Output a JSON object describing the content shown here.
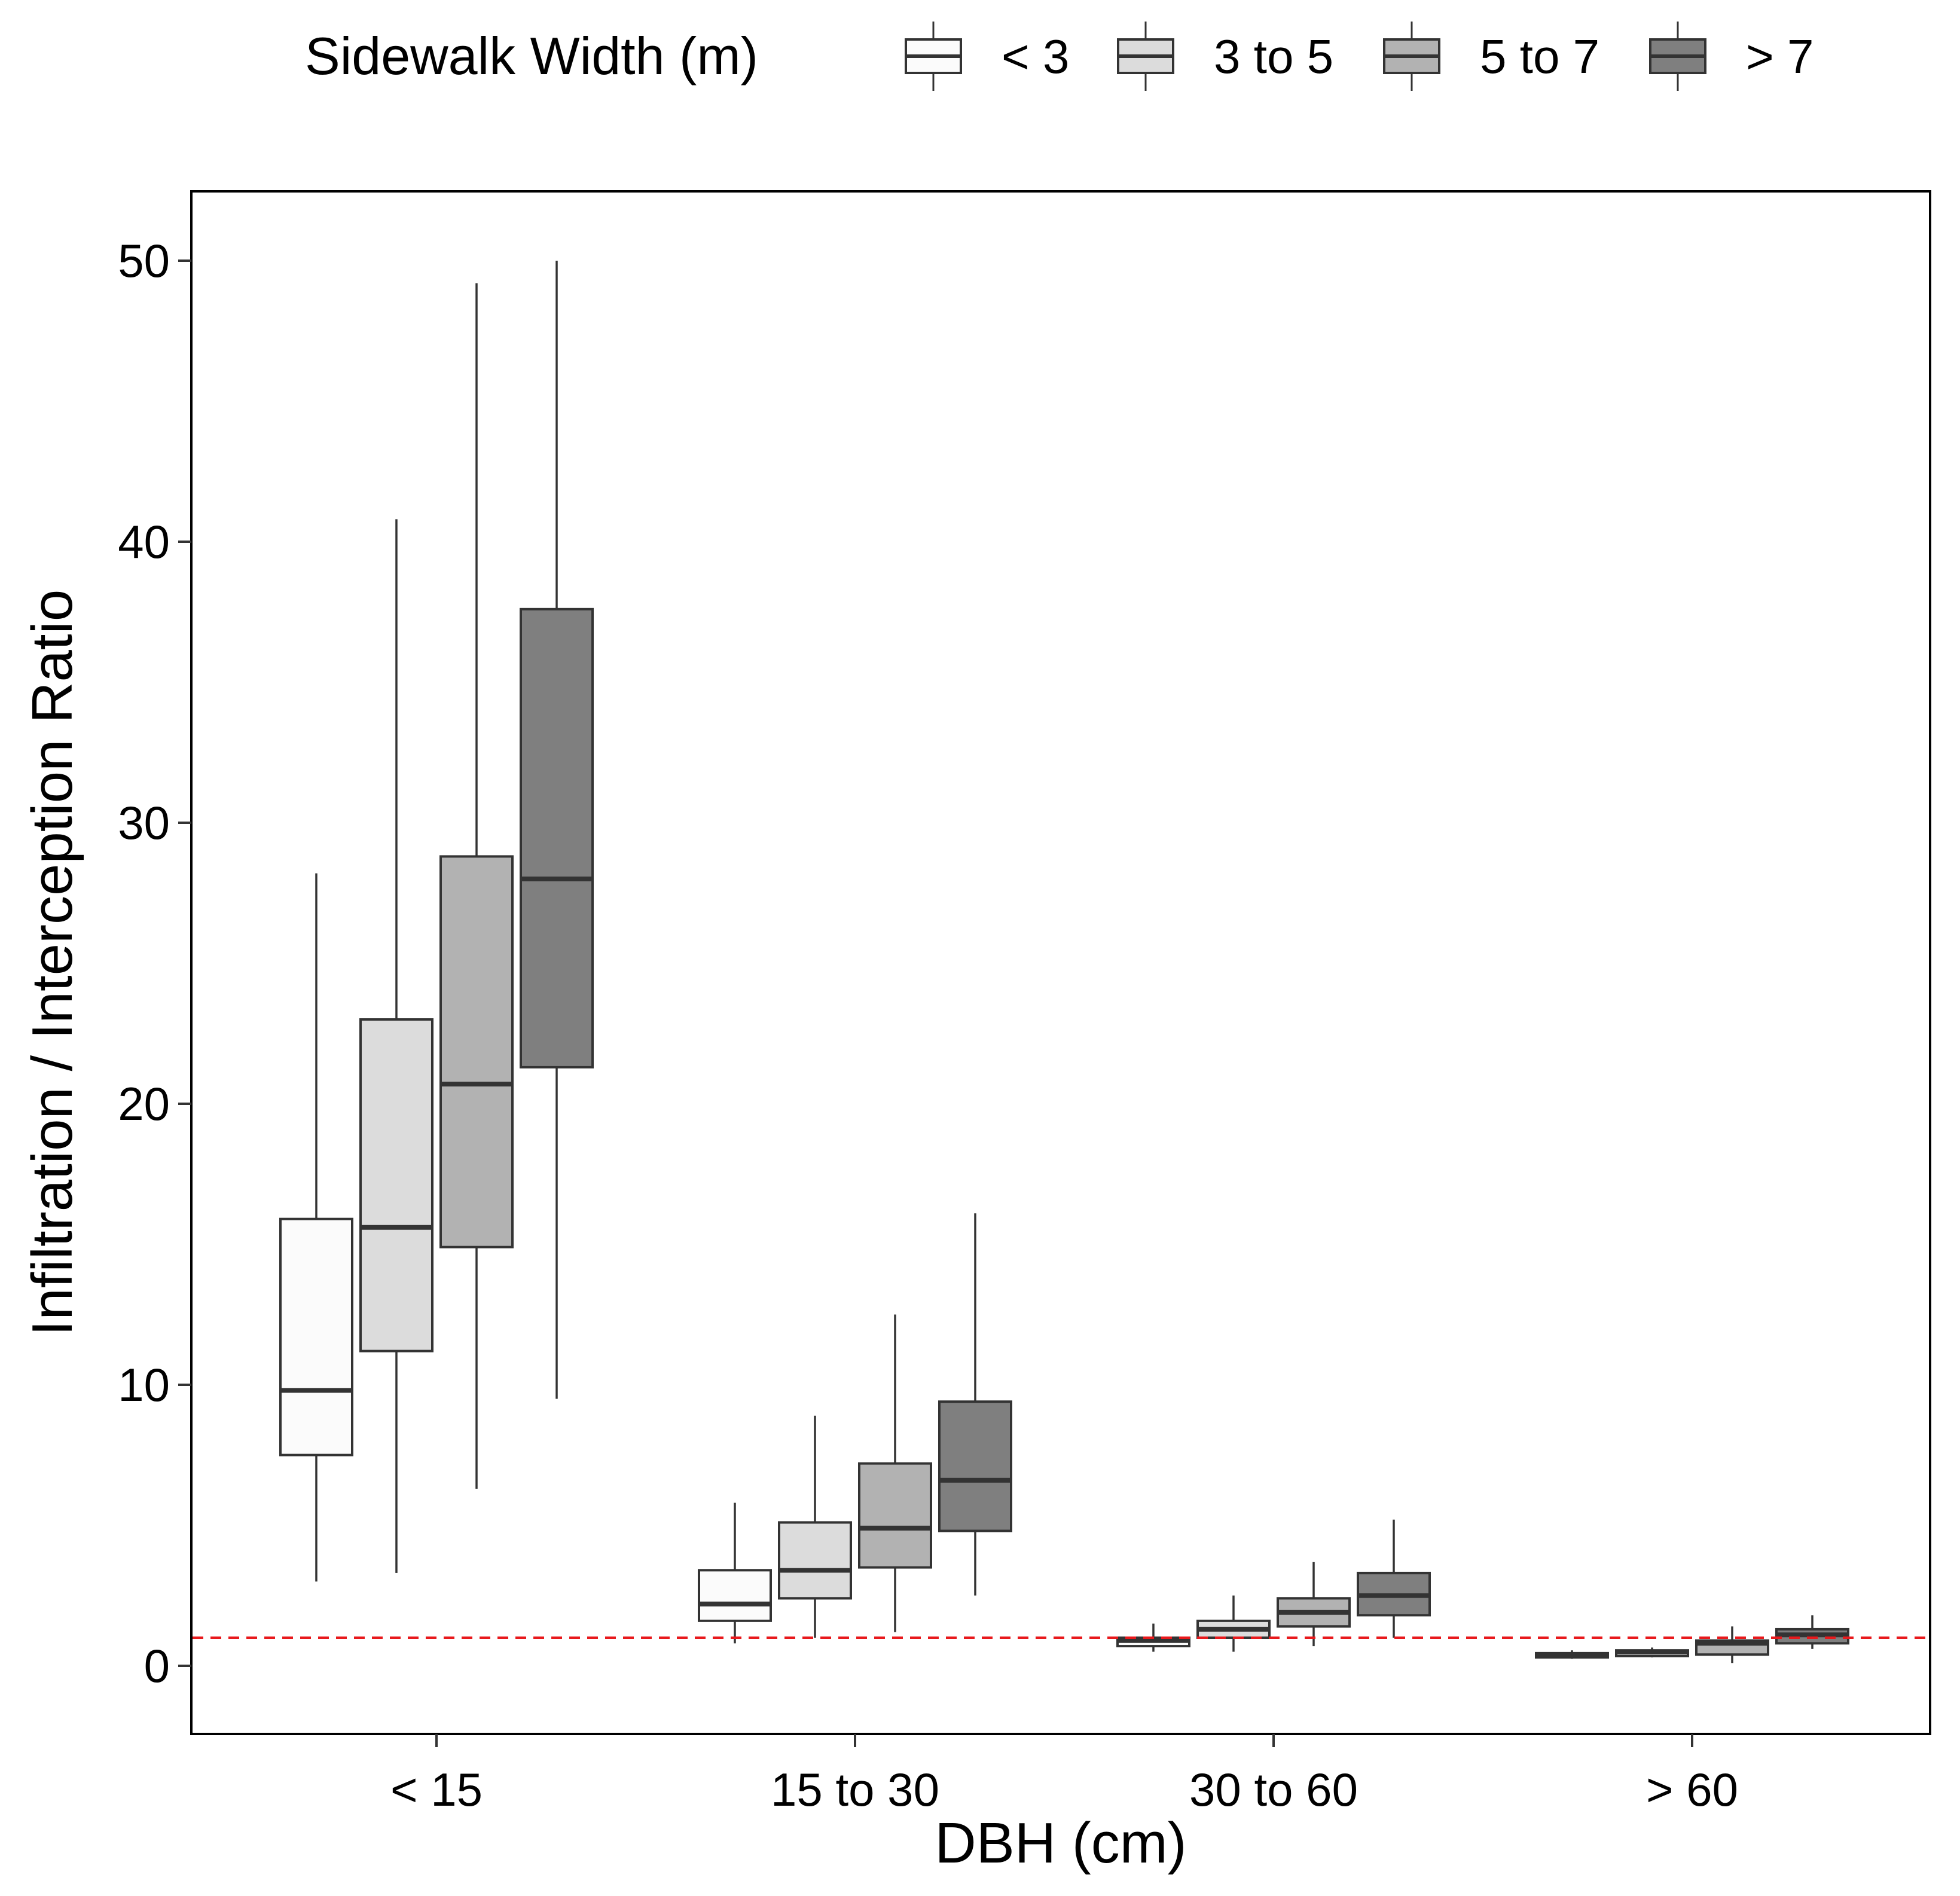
{
  "chart_data": {
    "type": "boxplot",
    "title": "",
    "xlabel": "DBH (cm)",
    "ylabel": "Infiltration / Interception Ratio",
    "ylim": [
      -2.5,
      52.5
    ],
    "yticks": [
      0,
      10,
      20,
      30,
      40,
      50
    ],
    "categories": [
      "< 15",
      "15 to 30",
      "30 to 60",
      "> 60"
    ],
    "reference_line": {
      "value": 1,
      "color": "#e8191c",
      "style": "dashed"
    },
    "grid": false,
    "legend": {
      "title": "Sidewalk Width (m)",
      "position": "top"
    },
    "series": [
      {
        "name": "< 3",
        "color": "#fbfbfb",
        "boxes": [
          {
            "lower_whisker": 3.0,
            "q1": 7.5,
            "median": 9.8,
            "q3": 15.9,
            "upper_whisker": 28.2
          },
          {
            "lower_whisker": 0.8,
            "q1": 1.6,
            "median": 2.2,
            "q3": 3.4,
            "upper_whisker": 5.8
          },
          {
            "lower_whisker": 0.5,
            "q1": 0.7,
            "median": 0.9,
            "q3": 1.0,
            "upper_whisker": 1.5
          },
          {
            "lower_whisker": 0.25,
            "q1": 0.3,
            "median": 0.4,
            "q3": 0.45,
            "upper_whisker": 0.55
          }
        ]
      },
      {
        "name": "3 to 5",
        "color": "#dcdcdc",
        "boxes": [
          {
            "lower_whisker": 3.3,
            "q1": 11.2,
            "median": 15.6,
            "q3": 23.0,
            "upper_whisker": 40.8
          },
          {
            "lower_whisker": 1.0,
            "q1": 2.4,
            "median": 3.4,
            "q3": 5.1,
            "upper_whisker": 8.9
          },
          {
            "lower_whisker": 0.5,
            "q1": 1.0,
            "median": 1.3,
            "q3": 1.6,
            "upper_whisker": 2.5
          },
          {
            "lower_whisker": 0.3,
            "q1": 0.35,
            "median": 0.5,
            "q3": 0.55,
            "upper_whisker": 0.65
          }
        ]
      },
      {
        "name": "5 to 7",
        "color": "#b2b2b2",
        "boxes": [
          {
            "lower_whisker": 6.3,
            "q1": 14.9,
            "median": 20.7,
            "q3": 28.8,
            "upper_whisker": 49.2
          },
          {
            "lower_whisker": 1.2,
            "q1": 3.5,
            "median": 4.9,
            "q3": 7.2,
            "upper_whisker": 12.5
          },
          {
            "lower_whisker": 0.7,
            "q1": 1.4,
            "median": 1.9,
            "q3": 2.4,
            "upper_whisker": 3.7
          },
          {
            "lower_whisker": 0.1,
            "q1": 0.4,
            "median": 0.8,
            "q3": 0.9,
            "upper_whisker": 1.4
          }
        ]
      },
      {
        "name": "> 7",
        "color": "#7f7f7f",
        "boxes": [
          {
            "lower_whisker": 9.5,
            "q1": 21.3,
            "median": 28.0,
            "q3": 37.6,
            "upper_whisker": 50.0
          },
          {
            "lower_whisker": 2.5,
            "q1": 4.8,
            "median": 6.6,
            "q3": 9.4,
            "upper_whisker": 16.1
          },
          {
            "lower_whisker": 1.0,
            "q1": 1.8,
            "median": 2.5,
            "q3": 3.3,
            "upper_whisker": 5.2
          },
          {
            "lower_whisker": 0.6,
            "q1": 0.8,
            "median": 1.1,
            "q3": 1.3,
            "upper_whisker": 1.8
          }
        ]
      }
    ]
  }
}
